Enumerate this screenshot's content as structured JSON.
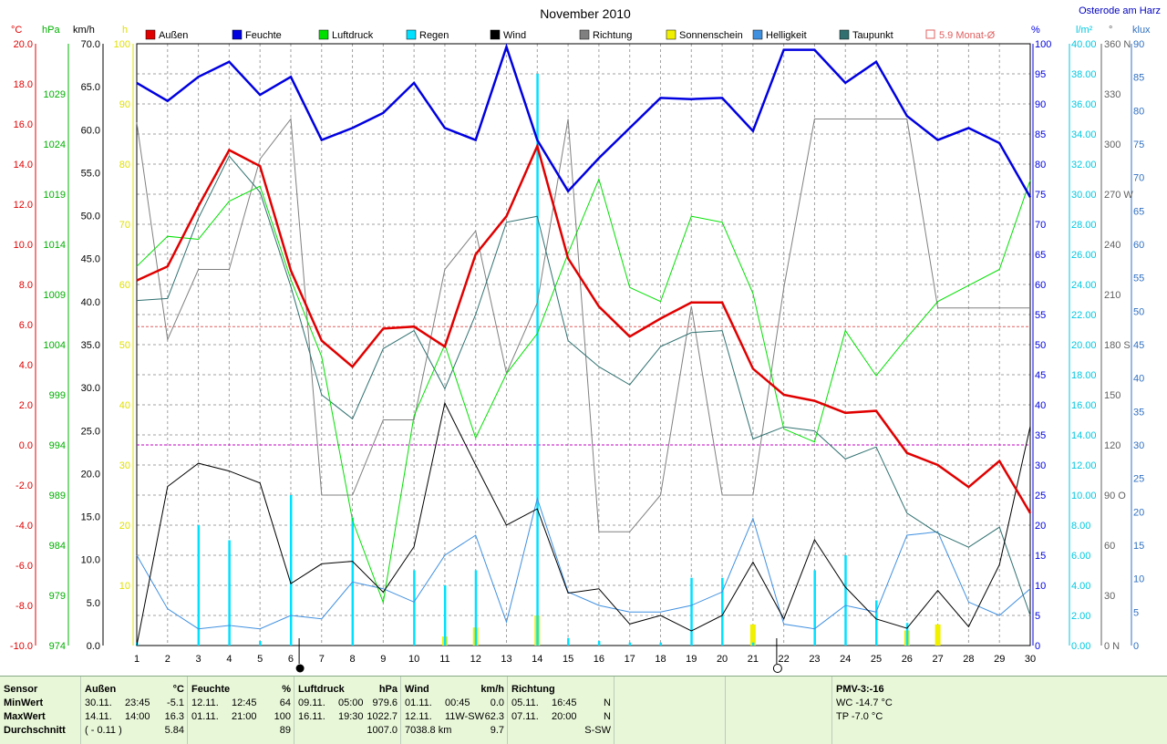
{
  "chart_data": {
    "type": "line",
    "title": "November 2010",
    "station": "Osterode am Harz",
    "legend": [
      {
        "name": "Außen",
        "color": "#e00000"
      },
      {
        "name": "Feuchte",
        "color": "#0000e0"
      },
      {
        "name": "Luftdruck",
        "color": "#00e000"
      },
      {
        "name": "Regen",
        "color": "#00e0ff"
      },
      {
        "name": "Wind",
        "color": "#000000"
      },
      {
        "name": "Richtung",
        "color": "#808080"
      },
      {
        "name": "Sonnenschein",
        "color": "#f0f000"
      },
      {
        "name": "Helligkeit",
        "color": "#4090e0"
      },
      {
        "name": "Taupunkt",
        "color": "#307070"
      },
      {
        "name": "5.9 Monat-Ø",
        "color": "#e06060"
      }
    ],
    "axis_units": {
      "temp": "°C",
      "press": "hPa",
      "wind": "km/h",
      "sun": "h",
      "hum": "%",
      "rain": "l/m²",
      "dir": "°",
      "lux": "klux"
    },
    "x": [
      1,
      2,
      3,
      4,
      5,
      6,
      7,
      8,
      9,
      10,
      11,
      12,
      13,
      14,
      15,
      16,
      17,
      18,
      19,
      20,
      21,
      22,
      23,
      24,
      25,
      26,
      27,
      28,
      29,
      30
    ],
    "axes": {
      "temp": {
        "min": -10,
        "max": 20,
        "ticks": [
          "20.0",
          "18.0",
          "16.0",
          "14.0",
          "12.0",
          "10.0",
          "8.0",
          "6.0",
          "4.0",
          "2.0",
          "0.0",
          "-2.0",
          "-4.0",
          "-6.0",
          "-8.0",
          "-10.0"
        ]
      },
      "press": {
        "min": 974,
        "max": 1034,
        "ticks": [
          "1029",
          "1024",
          "1019",
          "1014",
          "1009",
          "1004",
          "999",
          "994",
          "989",
          "984",
          "979",
          "974"
        ]
      },
      "wind": {
        "min": 0,
        "max": 70,
        "ticks": [
          "70.0",
          "65.0",
          "60.0",
          "55.0",
          "50.0",
          "45.0",
          "40.0",
          "35.0",
          "30.0",
          "25.0",
          "20.0",
          "15.0",
          "10.0",
          "5.0",
          "0.0"
        ]
      },
      "sun": {
        "min": 0,
        "max": 100,
        "ticks": [
          "100",
          "90",
          "80",
          "70",
          "60",
          "50",
          "40",
          "30",
          "20",
          "10"
        ]
      },
      "hum": {
        "min": 0,
        "max": 100,
        "ticks": [
          "100",
          "95",
          "90",
          "85",
          "80",
          "75",
          "70",
          "65",
          "60",
          "55",
          "50",
          "45",
          "40",
          "35",
          "30",
          "25",
          "20",
          "15",
          "10",
          "5",
          "0"
        ]
      },
      "rain": {
        "min": 0,
        "max": 40,
        "ticks": [
          "40.00",
          "38.00",
          "36.00",
          "34.00",
          "32.00",
          "30.00",
          "28.00",
          "26.00",
          "24.00",
          "22.00",
          "20.00",
          "18.00",
          "16.00",
          "14.00",
          "12.00",
          "10.00",
          "8.00",
          "6.00",
          "4.00",
          "2.00",
          "0.00"
        ]
      },
      "dir": {
        "min": 0,
        "max": 360,
        "ticks": [
          {
            "v": 360,
            "l": "360 N"
          },
          {
            "v": 330,
            "l": "330"
          },
          {
            "v": 300,
            "l": "300"
          },
          {
            "v": 270,
            "l": "270 W"
          },
          {
            "v": 240,
            "l": "240"
          },
          {
            "v": 210,
            "l": "210"
          },
          {
            "v": 180,
            "l": "180 S"
          },
          {
            "v": 150,
            "l": "150"
          },
          {
            "v": 120,
            "l": "120"
          },
          {
            "v": 90,
            "l": "90 O"
          },
          {
            "v": 60,
            "l": "60"
          },
          {
            "v": 30,
            "l": "30"
          },
          {
            "v": 0,
            "l": "0 N"
          }
        ]
      },
      "lux": {
        "min": 0,
        "max": 90,
        "ticks": [
          "90",
          "85",
          "80",
          "75",
          "70",
          "65",
          "60",
          "55",
          "50",
          "45",
          "40",
          "35",
          "30",
          "25",
          "20",
          "15",
          "10",
          "5",
          "0"
        ]
      }
    },
    "series": [
      {
        "name": "Außen",
        "axis": "temp",
        "color": "#e00000",
        "width": 2.5,
        "values": [
          8.2,
          8.9,
          11.9,
          14.7,
          13.9,
          8.7,
          5.2,
          3.9,
          5.8,
          5.9,
          4.9,
          9.5,
          11.4,
          14.9,
          9.3,
          6.9,
          5.4,
          6.3,
          7.1,
          7.1,
          3.8,
          2.5,
          2.2,
          1.6,
          1.7,
          -0.4,
          -1.0,
          -2.1,
          -0.8,
          -3.4
        ]
      },
      {
        "name": "Feuchte",
        "axis": "hum",
        "color": "#0000e0",
        "width": 2.5,
        "values": [
          93.5,
          90.5,
          94.5,
          97,
          91.5,
          94.5,
          84,
          86,
          88.5,
          93.5,
          86,
          84,
          99.5,
          84,
          75.5,
          81,
          86,
          91,
          90.8,
          91,
          85.5,
          99,
          99,
          93.5,
          97,
          88,
          84,
          86,
          83.5,
          74.5
        ]
      },
      {
        "name": "Luftdruck",
        "axis": "press",
        "color": "#00e000",
        "width": 1,
        "values": [
          1011.8,
          1014.8,
          1014.5,
          1018.3,
          1019.8,
          1010.5,
          1002.8,
          986.5,
          978.3,
          996.9,
          1004,
          994.7,
          1001.1,
          1005.1,
          1013.1,
          1020.5,
          1009.7,
          1008.3,
          1016.8,
          1016.2,
          1009.1,
          995.6,
          994.3,
          1005.4,
          1000.9,
          1004.7,
          1008.3,
          1009.9,
          1011.5,
          1020.4
        ]
      },
      {
        "name": "Wind",
        "axis": "wind",
        "color": "#000000",
        "width": 1,
        "values": [
          0.0,
          18.5,
          21.2,
          20.3,
          18.9,
          7.2,
          9.5,
          9.8,
          6.2,
          11.5,
          28.2,
          21.0,
          14.0,
          15.9,
          6.1,
          6.6,
          2.5,
          3.5,
          1.7,
          3.5,
          9.7,
          3.1,
          12.3,
          6.8,
          3.1,
          2.0,
          6.4,
          2.2,
          9.4,
          25.5
        ]
      },
      {
        "name": "Richtung",
        "axis": "dir",
        "color": "#808080",
        "width": 1,
        "values": [
          313,
          183,
          225,
          225,
          291,
          315,
          90,
          90,
          135,
          135,
          225,
          248,
          163,
          205,
          315,
          68,
          68,
          90,
          203,
          90,
          90,
          214,
          315,
          315,
          315,
          315,
          202,
          202,
          202,
          202
        ]
      },
      {
        "name": "Helligkeit",
        "axis": "lux",
        "color": "#4090e0",
        "width": 1,
        "values": [
          13.5,
          5.5,
          2.5,
          3,
          2.5,
          4.5,
          4,
          9.5,
          8.5,
          6.5,
          13.5,
          16.5,
          3.5,
          22,
          8,
          6,
          5,
          5,
          6,
          8,
          19,
          3.2,
          2.5,
          6,
          5,
          16.5,
          17,
          6.5,
          4.5,
          8.5
        ]
      },
      {
        "name": "Taupunkt",
        "axis": "temp",
        "color": "#307070",
        "width": 1,
        "values": [
          7.2,
          7.3,
          11.3,
          14.4,
          12.6,
          7.9,
          2.5,
          1.3,
          4.8,
          5.7,
          2.8,
          6.5,
          11.1,
          11.4,
          5.2,
          3.9,
          3.0,
          4.9,
          5.6,
          5.7,
          0.3,
          0.9,
          0.7,
          -0.7,
          -0.1,
          -3.4,
          -4.4,
          -5.1,
          -4.1,
          -8.5
        ]
      }
    ],
    "rain": [
      0.2,
      0,
      8,
      7,
      0.3,
      10,
      0,
      8.5,
      0,
      5,
      4,
      5,
      0,
      38,
      0.5,
      0.3,
      0.2,
      0.2,
      4.5,
      4.5,
      0.2,
      0,
      5,
      6,
      3,
      1.5,
      0,
      0,
      0,
      0
    ],
    "sunshine": [
      0,
      0,
      0,
      0,
      0,
      0,
      0,
      0,
      0,
      0,
      1.5,
      3,
      0,
      5,
      0,
      0,
      0,
      0,
      0,
      0,
      3.5,
      0,
      0,
      0,
      0,
      2.5,
      3.5,
      0,
      0,
      0
    ],
    "reference_lines": [
      {
        "name": "5.9 Monat-Ø",
        "axis": "temp",
        "value": 5.9,
        "color": "#e06060"
      },
      {
        "axis": "temp",
        "value": 0,
        "color": "#c000c0"
      }
    ],
    "moon_markers": [
      {
        "x": 6.3,
        "phase": "new"
      },
      {
        "x": 21.8,
        "phase": "full"
      }
    ]
  },
  "footer": {
    "sensor": {
      "header": "Sensor",
      "rows": [
        "MinWert",
        "MaxWert",
        "Durchschnitt"
      ]
    },
    "aussen": {
      "header": "Außen",
      "unit": "°C",
      "min": {
        "date": "30.11.",
        "time": "23:45",
        "val": "-5.1"
      },
      "max": {
        "date": "14.11.",
        "time": "14:00",
        "val": "16.3"
      },
      "avg": {
        "date": "( - 0.11 )",
        "val": "5.84"
      }
    },
    "feuchte": {
      "header": "Feuchte",
      "unit": "%",
      "min": {
        "date": "12.11.",
        "time": "12:45",
        "val": "64"
      },
      "max": {
        "date": "01.11.",
        "time": "21:00",
        "val": "100"
      },
      "avg": {
        "val": "89"
      }
    },
    "luftdruck": {
      "header": "Luftdruck",
      "unit": "hPa",
      "min": {
        "date": "09.11.",
        "time": "05:00",
        "val": "979.6"
      },
      "max": {
        "date": "16.11.",
        "time": "19:30",
        "val": "1022.7"
      },
      "avg": {
        "val": "1007.0"
      }
    },
    "wind": {
      "header": "Wind",
      "unit": "km/h",
      "min": {
        "date": "01.11.",
        "time": "00:45",
        "val": "0.0"
      },
      "max": {
        "date": "12.11.",
        "time": "11W-SW",
        "val": "62.3"
      },
      "avg": {
        "date": "7038.8 km",
        "val": "9.7"
      }
    },
    "richtung": {
      "header": "Richtung",
      "min": {
        "date": "05.11.",
        "time": "16:45",
        "val": "N"
      },
      "max": {
        "date": "07.11.",
        "time": "20:00",
        "val": "N"
      },
      "avg": {
        "val": "S-SW"
      }
    },
    "pmv": {
      "header": "PMV-3:-16",
      "wc": "WC -14.7 °C",
      "tp": "TP -7.0 °C"
    }
  }
}
